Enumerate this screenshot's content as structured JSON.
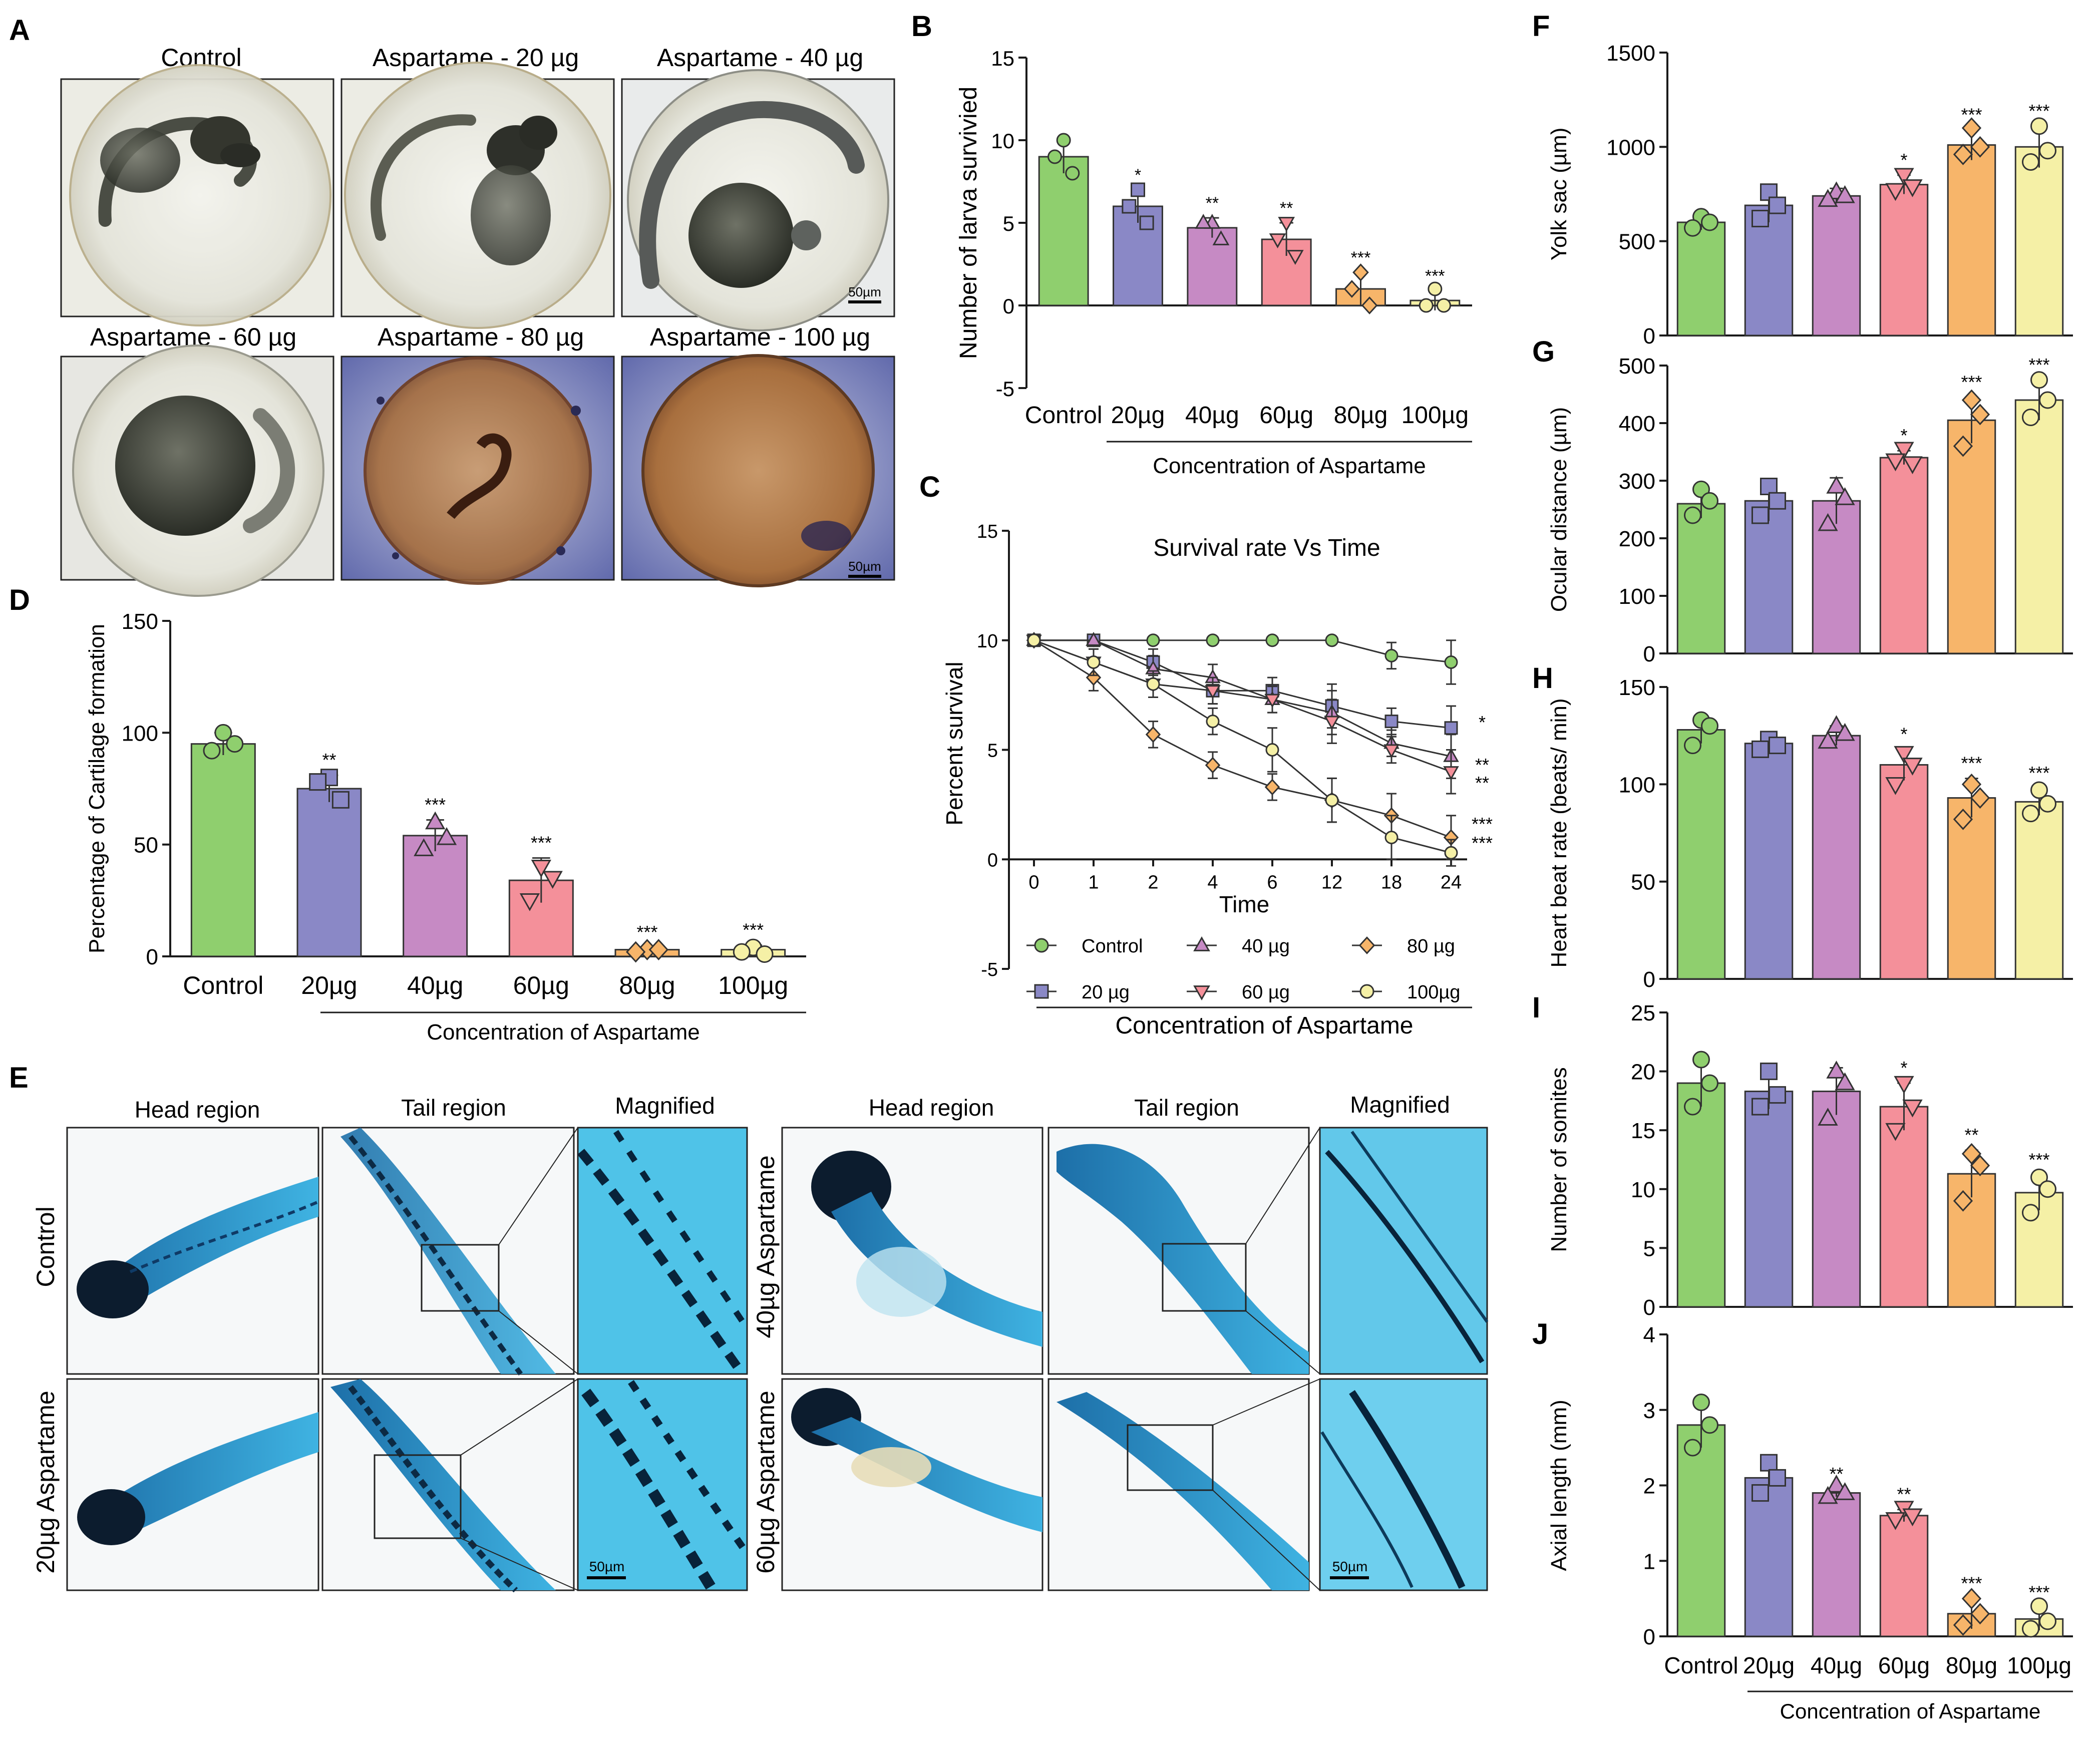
{
  "colors": {
    "control": "#8fcf6e",
    "c20": "#8a88c6",
    "c40": "#c68ac4",
    "c60": "#f4909a",
    "c80": "#f7b56a",
    "c100": "#f5f0a6",
    "cartilage": "#29a9d9",
    "axis": "#1a1a1a"
  },
  "panel_labels": [
    "A",
    "B",
    "C",
    "D",
    "E",
    "F",
    "G",
    "H",
    "I",
    "J"
  ],
  "common": {
    "groups_short": [
      "Control",
      "20µg",
      "40µg",
      "60µg",
      "80µg",
      "100µg"
    ],
    "concentration_caption": "Concentration of Aspartame",
    "scale_bar": "50µm"
  },
  "panel_a": {
    "titles": [
      "Control",
      "Aspartame - 20 µg",
      "Aspartame - 40 µg",
      "Aspartame - 60 µg",
      "Aspartame - 80 µg",
      "Aspartame - 100 µg"
    ]
  },
  "panel_e": {
    "col_titles_left": [
      "Head region",
      "Tail region",
      "Magnified"
    ],
    "col_titles_right": [
      "Head region",
      "Tail region",
      "Magnified"
    ],
    "row_labels": [
      "Control",
      "20µg Aspartame",
      "40µg Aspartame",
      "60µg Aspartame"
    ]
  },
  "chart_data": [
    {
      "id": "B",
      "type": "bar",
      "ylabel": "Number of larva survivied",
      "xlabel": "Concentration of Aspartame",
      "categories": [
        "Control",
        "20µg",
        "40µg",
        "60µg",
        "80µg",
        "100µg"
      ],
      "values": [
        9.0,
        6.0,
        4.7,
        4.0,
        1.0,
        0.3
      ],
      "errors": [
        1.0,
        1.0,
        0.6,
        1.0,
        1.0,
        0.6
      ],
      "points": [
        [
          10,
          9,
          8
        ],
        [
          7,
          6,
          5
        ],
        [
          5,
          5,
          4
        ],
        [
          5,
          4,
          3
        ],
        [
          2,
          1,
          0
        ],
        [
          1,
          0,
          0
        ]
      ],
      "markers": [
        "circle",
        "square",
        "triangle",
        "tri-down",
        "diamond",
        "circle"
      ],
      "significance": [
        "",
        "*",
        "**",
        "**",
        "***",
        "***"
      ],
      "ylim": [
        -5,
        15
      ],
      "yticks": [
        -5,
        0,
        5,
        10,
        15
      ]
    },
    {
      "id": "C",
      "type": "line",
      "title": "Survival rate Vs Time",
      "ylabel": "Percent survival",
      "xlabel": "Time",
      "caption": "Concentration of Aspartame",
      "x": [
        "0",
        "1",
        "2",
        "4",
        "6",
        "12",
        "18",
        "24"
      ],
      "ylim": [
        -5,
        15
      ],
      "yticks": [
        -5,
        0,
        5,
        10,
        15
      ],
      "series": [
        {
          "name": "Control",
          "marker": "circle",
          "values": [
            10,
            10,
            10,
            10,
            10,
            10,
            9.3,
            9.0
          ],
          "err": [
            0,
            0,
            0,
            0,
            0,
            0,
            0.6,
            1.0
          ],
          "sig": ""
        },
        {
          "name": "20 µg",
          "marker": "square",
          "values": [
            10,
            10,
            9.0,
            7.7,
            7.7,
            7.0,
            6.3,
            6.0
          ],
          "err": [
            0,
            0,
            0.6,
            0.6,
            0.6,
            1.0,
            0.6,
            1.0
          ],
          "sig": "*"
        },
        {
          "name": "40 µg",
          "marker": "triangle",
          "values": [
            10,
            10,
            8.7,
            8.3,
            7.3,
            6.7,
            5.3,
            4.7
          ],
          "err": [
            0,
            0,
            0.6,
            0.6,
            0.6,
            1.0,
            0.6,
            1.0
          ],
          "sig": "**"
        },
        {
          "name": "60 µg",
          "marker": "tri-down",
          "values": [
            10,
            9.0,
            8.0,
            7.7,
            7.3,
            6.3,
            5.0,
            4.0
          ],
          "err": [
            0,
            0.6,
            0.6,
            0.6,
            0.6,
            1.0,
            0.6,
            1.0
          ],
          "sig": "**"
        },
        {
          "name": "80 µg",
          "marker": "diamond",
          "values": [
            10,
            8.3,
            5.7,
            4.3,
            3.3,
            2.7,
            2.0,
            1.0
          ],
          "err": [
            0,
            0.6,
            0.6,
            0.6,
            0.6,
            1.0,
            1.0,
            1.0
          ],
          "sig": "***"
        },
        {
          "name": "100µg",
          "marker": "circle",
          "values": [
            10,
            9.0,
            8.0,
            6.3,
            5.0,
            2.7,
            1.0,
            0.3
          ],
          "err": [
            0,
            0.6,
            0.6,
            0.6,
            1.0,
            1.0,
            1.0,
            0.6
          ],
          "sig": "***"
        }
      ],
      "legend_layout": [
        [
          "Control",
          "40 µg",
          "80 µg"
        ],
        [
          "20 µg",
          "60 µg",
          "100µg"
        ]
      ]
    },
    {
      "id": "D",
      "type": "bar",
      "ylabel": "Percentage of Cartilage formation",
      "xlabel": "Concentration of Aspartame",
      "categories": [
        "Control",
        "20µg",
        "40µg",
        "60µg",
        "80µg",
        "100µg"
      ],
      "values": [
        95,
        75,
        54,
        34,
        3,
        3
      ],
      "errors": [
        5,
        6,
        7,
        10,
        1,
        2
      ],
      "points": [
        [
          100,
          92,
          95
        ],
        [
          80,
          78,
          70
        ],
        [
          60,
          48,
          53
        ],
        [
          40,
          25,
          35
        ],
        [
          3,
          2,
          3
        ],
        [
          4,
          2,
          1
        ]
      ],
      "markers": [
        "circle",
        "square",
        "triangle",
        "tri-down",
        "diamond",
        "circle"
      ],
      "significance": [
        "",
        "**",
        "***",
        "***",
        "***",
        "***"
      ],
      "ylim": [
        0,
        150
      ],
      "yticks": [
        0,
        50,
        100,
        150
      ]
    },
    {
      "id": "F",
      "type": "bar",
      "ylabel": "Yolk sac (µm)",
      "categories": [
        "Control",
        "20µg",
        "40µg",
        "60µg",
        "80µg",
        "100µg"
      ],
      "values": [
        600,
        690,
        740,
        800,
        1010,
        1000
      ],
      "errors": [
        40,
        90,
        40,
        50,
        80,
        110
      ],
      "points": [
        [
          630,
          570,
          600
        ],
        [
          760,
          620,
          690
        ],
        [
          760,
          720,
          740
        ],
        [
          850,
          770,
          790
        ],
        [
          1100,
          960,
          1000
        ],
        [
          1110,
          920,
          980
        ]
      ],
      "markers": [
        "circle",
        "square",
        "triangle",
        "tri-down",
        "diamond",
        "circle"
      ],
      "significance": [
        "",
        "",
        "",
        "*",
        "***",
        "***"
      ],
      "ylim": [
        0,
        1500
      ],
      "yticks": [
        0,
        500,
        1000,
        1500
      ]
    },
    {
      "id": "G",
      "type": "bar",
      "ylabel": "Ocular distance (µm)",
      "categories": [
        "Control",
        "20µg",
        "40µg",
        "60µg",
        "80µg",
        "100µg"
      ],
      "values": [
        260,
        265,
        265,
        340,
        405,
        440
      ],
      "errors": [
        25,
        35,
        40,
        12,
        40,
        35
      ],
      "points": [
        [
          285,
          240,
          265
        ],
        [
          290,
          240,
          265
        ],
        [
          290,
          225,
          270
        ],
        [
          355,
          335,
          330
        ],
        [
          440,
          360,
          415
        ],
        [
          475,
          410,
          440
        ]
      ],
      "markers": [
        "circle",
        "square",
        "triangle",
        "tri-down",
        "diamond",
        "circle"
      ],
      "significance": [
        "",
        "",
        "",
        "*",
        "***",
        "***"
      ],
      "ylim": [
        0,
        500
      ],
      "yticks": [
        0,
        100,
        200,
        300,
        400,
        500
      ]
    },
    {
      "id": "H",
      "type": "bar",
      "ylabel": "Heart beat rate (beats/ min)",
      "categories": [
        "Control",
        "20µg",
        "40µg",
        "60µg",
        "80µg",
        "100µg"
      ],
      "values": [
        128,
        121,
        125,
        110,
        93,
        91
      ],
      "errors": [
        7,
        3,
        5,
        8,
        10,
        7
      ],
      "points": [
        [
          133,
          120,
          130
        ],
        [
          123,
          118,
          120
        ],
        [
          130,
          122,
          126
        ],
        [
          116,
          100,
          110
        ],
        [
          100,
          82,
          93
        ],
        [
          97,
          85,
          90
        ]
      ],
      "markers": [
        "circle",
        "square",
        "triangle",
        "tri-down",
        "diamond",
        "circle"
      ],
      "significance": [
        "",
        "",
        "",
        "*",
        "***",
        "***"
      ],
      "ylim": [
        0,
        150
      ],
      "yticks": [
        0,
        50,
        100,
        150
      ]
    },
    {
      "id": "I",
      "type": "bar",
      "ylabel": "Number of somites",
      "categories": [
        "Control",
        "20µg",
        "40µg",
        "60µg",
        "80µg",
        "100µg"
      ],
      "values": [
        19,
        18.3,
        18.3,
        17,
        11.3,
        9.7
      ],
      "errors": [
        2,
        1.5,
        2,
        2,
        2,
        1.5
      ],
      "points": [
        [
          21,
          17,
          19
        ],
        [
          20,
          17,
          18
        ],
        [
          20,
          16,
          19
        ],
        [
          19,
          15,
          17
        ],
        [
          13,
          9,
          12
        ],
        [
          11,
          8,
          10
        ]
      ],
      "markers": [
        "circle",
        "square",
        "triangle",
        "tri-down",
        "diamond",
        "circle"
      ],
      "significance": [
        "",
        "",
        "",
        "*",
        "**",
        "***"
      ],
      "ylim": [
        0,
        25
      ],
      "yticks": [
        0,
        5,
        10,
        15,
        20,
        25
      ]
    },
    {
      "id": "J",
      "type": "bar",
      "ylabel": "Axial length (mm)",
      "xlabel": "Concentration of Aspartame",
      "categories": [
        "Control",
        "20µg",
        "40µg",
        "60µg",
        "80µg",
        "100µg"
      ],
      "values": [
        2.8,
        2.1,
        1.9,
        1.6,
        0.3,
        0.23
      ],
      "errors": [
        0.3,
        0.1,
        0.05,
        0.08,
        0.2,
        0.15
      ],
      "points": [
        [
          3.1,
          2.5,
          2.8
        ],
        [
          2.3,
          1.9,
          2.1
        ],
        [
          2.0,
          1.85,
          1.9
        ],
        [
          1.7,
          1.55,
          1.6
        ],
        [
          0.5,
          0.15,
          0.3
        ],
        [
          0.4,
          0.1,
          0.2
        ]
      ],
      "markers": [
        "circle",
        "square",
        "triangle",
        "tri-down",
        "diamond",
        "circle"
      ],
      "significance": [
        "",
        "",
        "**",
        "**",
        "***",
        "***"
      ],
      "ylim": [
        0,
        4
      ],
      "yticks": [
        0,
        1,
        2,
        3,
        4
      ]
    }
  ]
}
